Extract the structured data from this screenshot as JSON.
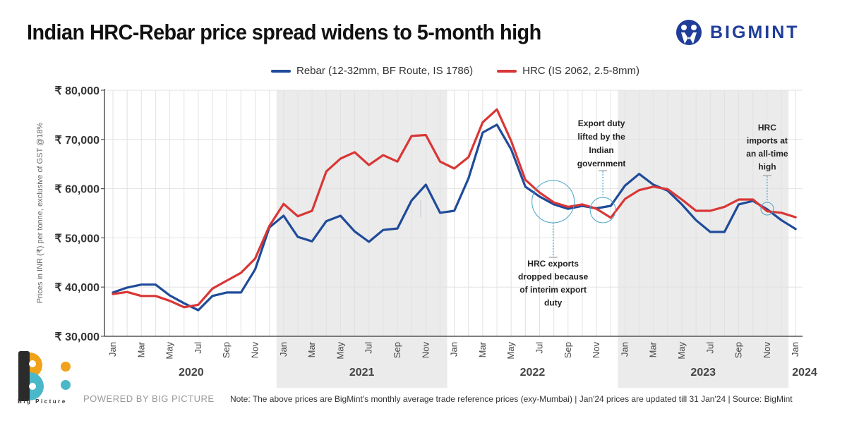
{
  "header": {
    "title": "Indian HRC-Rebar price spread widens to 5-month high",
    "brand": "BIGMINT",
    "brand_color": "#1f3d99"
  },
  "footer": {
    "powered_by": "POWERED BY BIG PICTURE",
    "logo_text": "Big Picture",
    "note": "Note: The above prices are BigMint's monthly average trade reference prices (exy-Mumbai)  |  Jan'24 prices are updated till 31 Jan'24  |  Source: BigMint"
  },
  "chart_data": {
    "type": "line",
    "title": "Indian HRC-Rebar price spread widens to 5-month high",
    "xlabel": "",
    "ylabel": "Prices in INR (₹) per tonne, exclusive of GST @18%",
    "ylim": [
      30000,
      80000
    ],
    "yticks": [
      30000,
      40000,
      50000,
      60000,
      70000,
      80000
    ],
    "ytick_labels": [
      "₹ 30,000",
      "₹ 40,000",
      "₹ 50,000",
      "₹ 60,000",
      "₹ 70,000",
      "₹ 80,000"
    ],
    "grid": true,
    "legend_position": "top-center",
    "x": [
      "Jan 2020",
      "Feb 2020",
      "Mar 2020",
      "Apr 2020",
      "May 2020",
      "Jun 2020",
      "Jul 2020",
      "Aug 2020",
      "Sep 2020",
      "Oct 2020",
      "Nov 2020",
      "Dec 2020",
      "Jan 2021",
      "Feb 2021",
      "Mar 2021",
      "Apr 2021",
      "May 2021",
      "Jun 2021",
      "Jul 2021",
      "Aug 2021",
      "Sep 2021",
      "Oct 2021",
      "Nov 2021",
      "Dec 2021",
      "Jan 2022",
      "Feb 2022",
      "Mar 2022",
      "Apr 2022",
      "May 2022",
      "Jun 2022",
      "Jul 2022",
      "Aug 2022",
      "Sep 2022",
      "Oct 2022",
      "Nov 2022",
      "Dec 2022",
      "Jan 2023",
      "Feb 2023",
      "Mar 2023",
      "Apr 2023",
      "May 2023",
      "Jun 2023",
      "Jul 2023",
      "Aug 2023",
      "Sep 2023",
      "Oct 2023",
      "Nov 2023",
      "Dec 2023",
      "Jan 2024"
    ],
    "month_tick_labels": [
      "Jan",
      "Mar",
      "May",
      "Jul",
      "Sep",
      "Nov",
      "Jan",
      "Mar",
      "May",
      "Jul",
      "Sep",
      "Nov",
      "Jan",
      "Mar",
      "May",
      "Jul",
      "Sep",
      "Nov",
      "Jan",
      "Mar",
      "May",
      "Jul",
      "Sep",
      "Nov",
      "Jan"
    ],
    "years": [
      {
        "label": "2020",
        "shaded": false
      },
      {
        "label": "2021",
        "shaded": true
      },
      {
        "label": "2022",
        "shaded": false
      },
      {
        "label": "2023",
        "shaded": true
      },
      {
        "label": "2024",
        "shaded": false
      }
    ],
    "series": [
      {
        "name": "Rebar (12-32mm, BF Route, IS 1786)",
        "color": "#1f4b99",
        "values": [
          38900,
          39900,
          40500,
          40500,
          38300,
          36700,
          35300,
          38200,
          38900,
          38900,
          43600,
          52100,
          54500,
          50200,
          49300,
          53400,
          54500,
          51300,
          49200,
          51600,
          51900,
          57600,
          60800,
          55100,
          55500,
          62100,
          71400,
          73000,
          68000,
          60400,
          58400,
          56800,
          55900,
          56500,
          56000,
          56500,
          60600,
          63000,
          60800,
          59600,
          56800,
          53600,
          51200,
          51200,
          56800,
          57500,
          55800,
          53600,
          51800
        ]
      },
      {
        "name": "HRC (IS 2062, 2.5-8mm)",
        "color": "#d93636",
        "values": [
          38600,
          39000,
          38200,
          38200,
          37200,
          35900,
          36400,
          39700,
          41300,
          42900,
          45800,
          52400,
          56900,
          54400,
          55500,
          63500,
          66100,
          67400,
          64800,
          66800,
          65500,
          70700,
          70900,
          65500,
          64100,
          66400,
          73500,
          76100,
          69700,
          61800,
          59200,
          57200,
          56300,
          56800,
          55900,
          54100,
          57900,
          59700,
          60400,
          59900,
          57800,
          55500,
          55500,
          56300,
          57800,
          57800,
          55400,
          55100,
          54200
        ]
      }
    ],
    "annotations": [
      {
        "text_lines": [
          "HRC exports",
          "dropped because",
          "of interim export",
          "duty"
        ],
        "at": "Aug 2022",
        "position": "below"
      },
      {
        "text_lines": [
          "Export duty",
          "lifted by the",
          "Indian",
          "government"
        ],
        "at": "Nov 2022",
        "position": "above"
      },
      {
        "text_lines": [
          "HRC",
          "imports at",
          "an all-time",
          "high"
        ],
        "at": "Nov 2023",
        "position": "above"
      }
    ]
  }
}
